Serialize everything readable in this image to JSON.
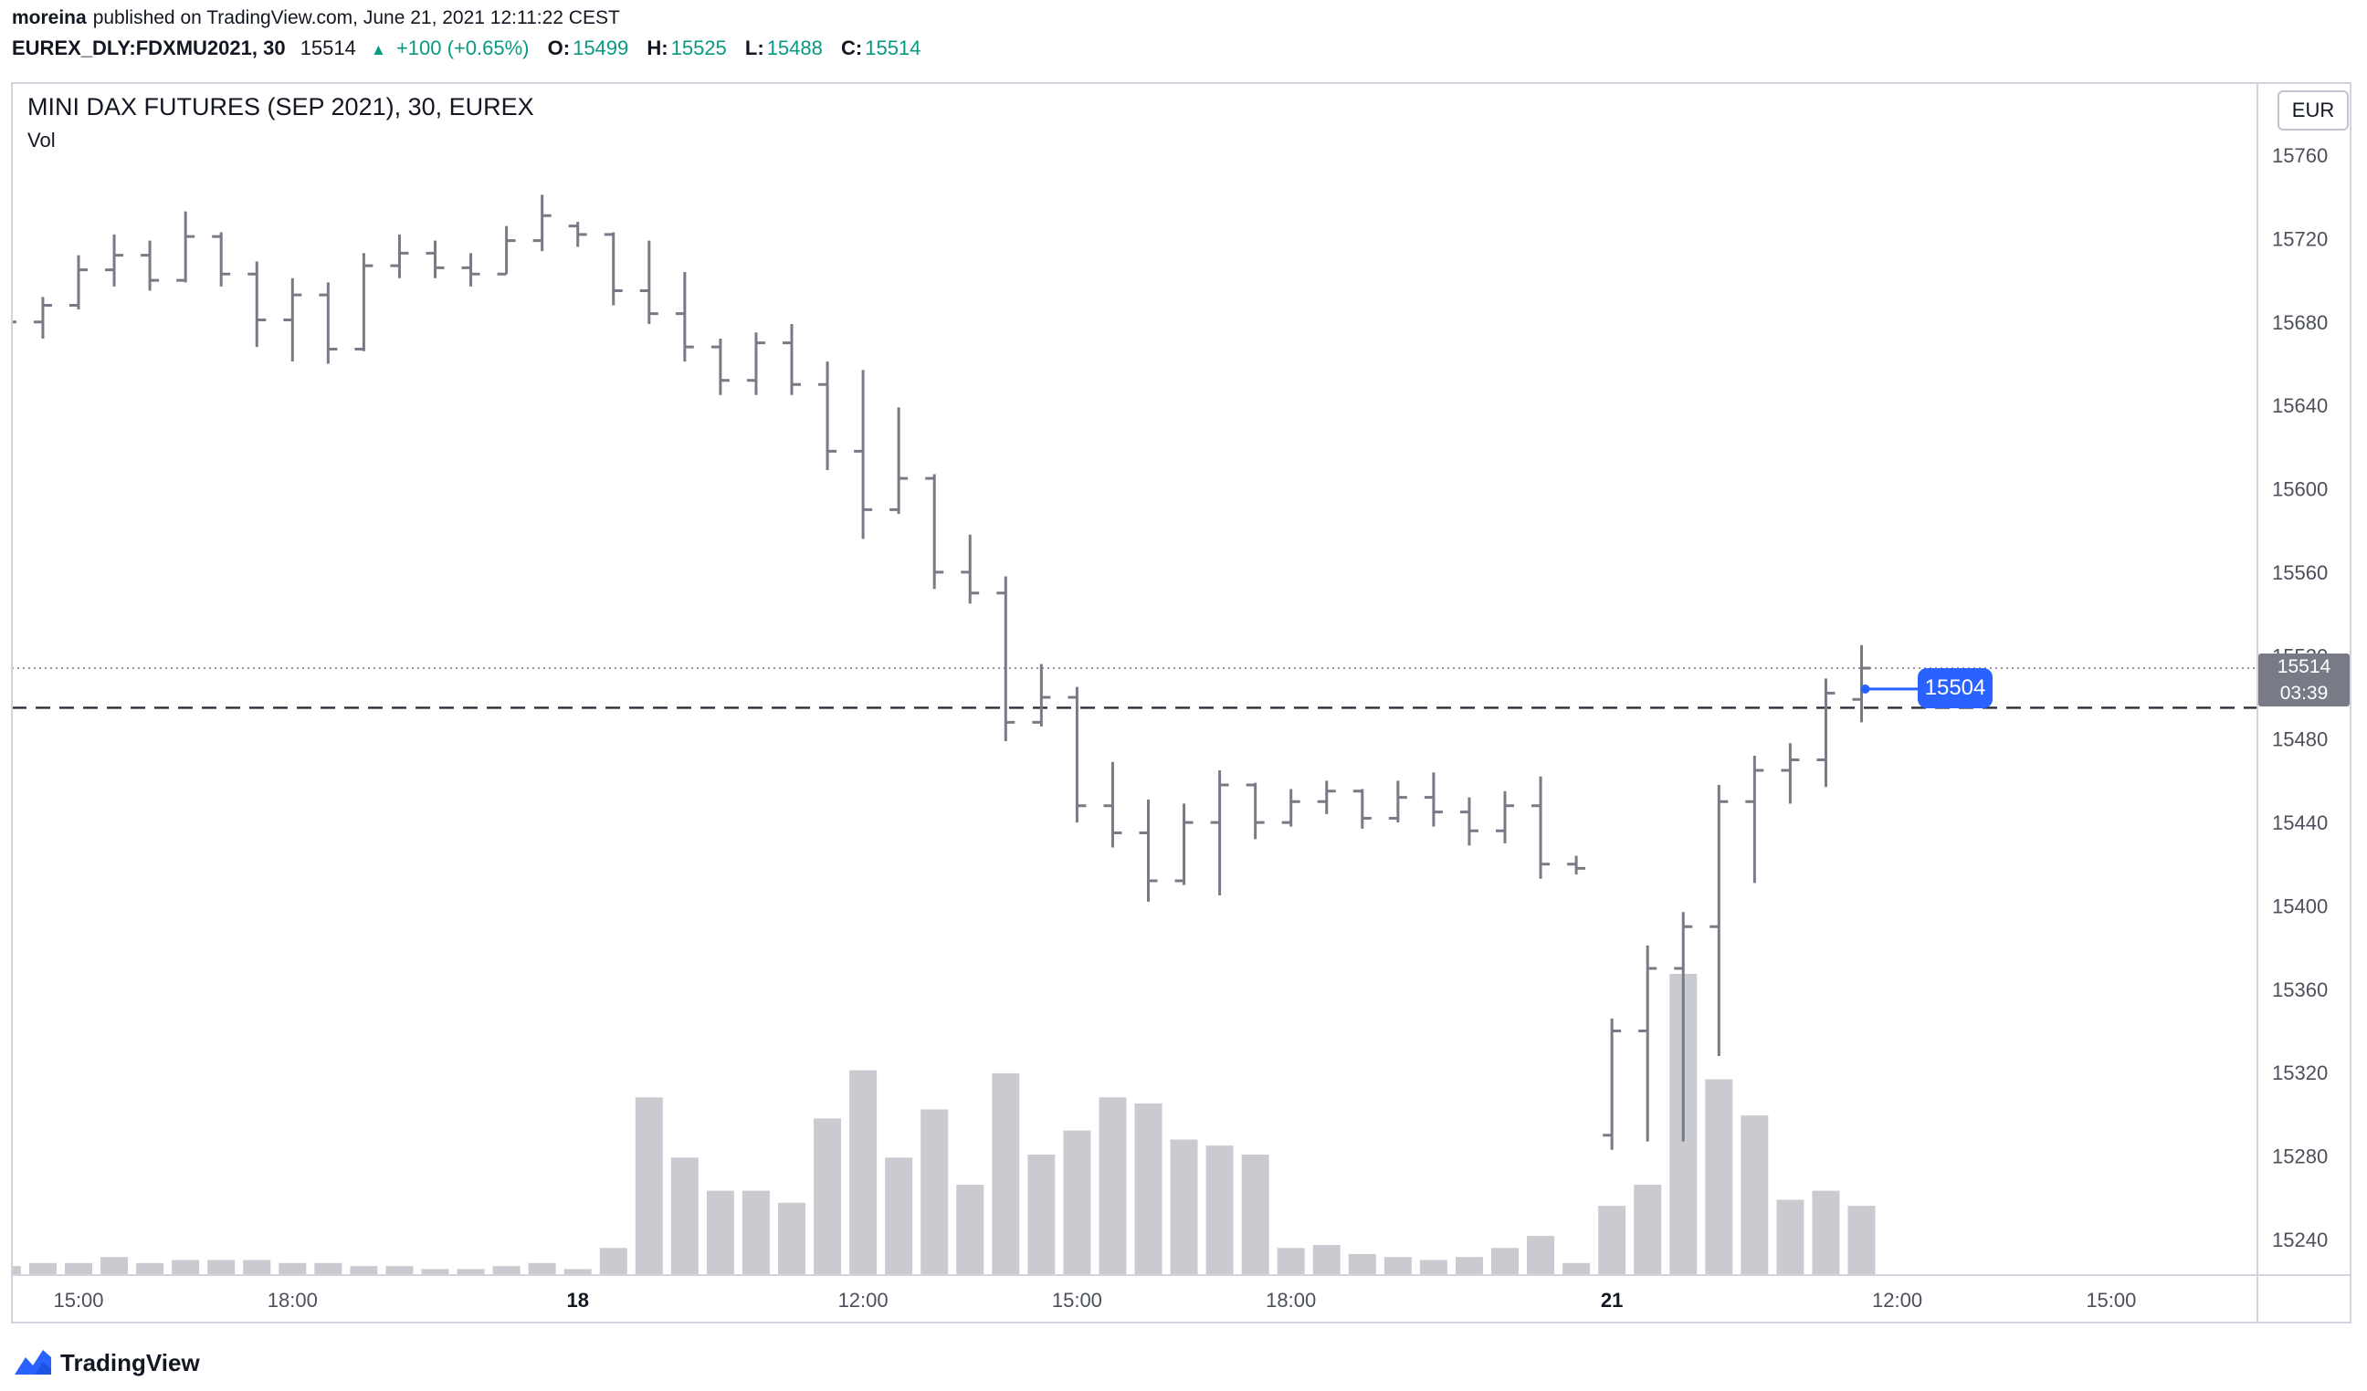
{
  "header": {
    "author": "moreina",
    "published": "published on TradingView.com, June 21, 2021 12:11:22 CEST",
    "symbol": "EUREX_DLY:FDXMU2021, 30",
    "last": "15514",
    "change_icon": "▲",
    "change": "+100 (+0.65%)",
    "ohlc": [
      {
        "label": "O:",
        "value": "15499"
      },
      {
        "label": "H:",
        "value": "15525"
      },
      {
        "label": "L:",
        "value": "15488"
      },
      {
        "label": "C:",
        "value": "15514"
      }
    ]
  },
  "chart": {
    "title": "MINI DAX FUTURES (SEP 2021), 30, EUREX",
    "pane_label": "Vol",
    "currency_label": "EUR",
    "price_tag": {
      "price": "15514",
      "countdown": "03:39"
    },
    "note_label": "15504",
    "colors": {
      "bar_gray": "#787b86",
      "volume_gray": "rgba(122,126,137,0.4)",
      "accent_blue": "#2962ff",
      "up_green": "#089981",
      "frame_gray": "#d1d4dc",
      "axis_text": "#4c505b",
      "tag_gray": "#787b86"
    }
  },
  "chart_data": {
    "type": "bar",
    "style": "ohlc-bars-with-volume",
    "title": "MINI DAX FUTURES (SEP 2021), 30, EUREX",
    "y_axis": {
      "currency": "EUR",
      "ticks": [
        15760,
        15720,
        15680,
        15640,
        15600,
        15560,
        15520,
        15480,
        15440,
        15400,
        15360,
        15320,
        15280,
        15240
      ]
    },
    "x_axis": {
      "labels": [
        {
          "bar": 2,
          "text": "15:00",
          "day": false
        },
        {
          "bar": 8,
          "text": "18:00",
          "day": false
        },
        {
          "bar": 16,
          "text": "18",
          "day": true
        },
        {
          "bar": 24,
          "text": "12:00",
          "day": false
        },
        {
          "bar": 30,
          "text": "15:00",
          "day": false
        },
        {
          "bar": 36,
          "text": "18:00",
          "day": false
        },
        {
          "bar": 45,
          "text": "21",
          "day": true
        },
        {
          "bar": 53,
          "text": "12:00",
          "day": false
        },
        {
          "bar": 59,
          "text": "15:00",
          "day": false
        }
      ]
    },
    "volume_units": "relative_percent_of_max_bar",
    "bars_ohlcv": [
      [
        15682,
        15688,
        15674,
        15680,
        3
      ],
      [
        15680,
        15692,
        15672,
        15688,
        4
      ],
      [
        15688,
        15712,
        15686,
        15705,
        4
      ],
      [
        15705,
        15722,
        15697,
        15712,
        6
      ],
      [
        15712,
        15719,
        15695,
        15700,
        4
      ],
      [
        15700,
        15733,
        15699,
        15721,
        5
      ],
      [
        15721,
        15723,
        15697,
        15703,
        5
      ],
      [
        15703,
        15709,
        15668,
        15681,
        5
      ],
      [
        15681,
        15701,
        15661,
        15693,
        4
      ],
      [
        15693,
        15699,
        15660,
        15667,
        4
      ],
      [
        15667,
        15713,
        15666,
        15707,
        3
      ],
      [
        15707,
        15722,
        15701,
        15713,
        3
      ],
      [
        15713,
        15719,
        15701,
        15706,
        2
      ],
      [
        15706,
        15713,
        15697,
        15703,
        2
      ],
      [
        15703,
        15726,
        15703,
        15719,
        3
      ],
      [
        15719,
        15741,
        15714,
        15731,
        4
      ],
      [
        15726,
        15728,
        15716,
        15722,
        2
      ],
      [
        15722,
        15723,
        15688,
        15695,
        9
      ],
      [
        15695,
        15719,
        15679,
        15684,
        59
      ],
      [
        15684,
        15704,
        15661,
        15668,
        39
      ],
      [
        15668,
        15672,
        15645,
        15652,
        28
      ],
      [
        15652,
        15675,
        15645,
        15670,
        28
      ],
      [
        15670,
        15679,
        15645,
        15650,
        24
      ],
      [
        15650,
        15661,
        15609,
        15618,
        52
      ],
      [
        15618,
        15657,
        15576,
        15590,
        68
      ],
      [
        15590,
        15639,
        15588,
        15605,
        39
      ],
      [
        15605,
        15607,
        15552,
        15560,
        55
      ],
      [
        15560,
        15578,
        15545,
        15550,
        30
      ],
      [
        15550,
        15558,
        15479,
        15488,
        67
      ],
      [
        15488,
        15516,
        15486,
        15500,
        40
      ],
      [
        15500,
        15505,
        15440,
        15448,
        48
      ],
      [
        15448,
        15469,
        15428,
        15435,
        59
      ],
      [
        15435,
        15451,
        15402,
        15412,
        57
      ],
      [
        15412,
        15449,
        15410,
        15440,
        45
      ],
      [
        15440,
        15465,
        15405,
        15458,
        43
      ],
      [
        15458,
        15459,
        15432,
        15440,
        40
      ],
      [
        15440,
        15456,
        15438,
        15450,
        9
      ],
      [
        15450,
        15460,
        15444,
        15455,
        10
      ],
      [
        15455,
        15456,
        15437,
        15442,
        7
      ],
      [
        15442,
        15460,
        15440,
        15452,
        6
      ],
      [
        15452,
        15464,
        15438,
        15445,
        5
      ],
      [
        15445,
        15452,
        15429,
        15436,
        6
      ],
      [
        15436,
        15455,
        15430,
        15448,
        9
      ],
      [
        15448,
        15462,
        15413,
        15420,
        13
      ],
      [
        15420,
        15424,
        15415,
        15418,
        4
      ],
      [
        15290,
        15346,
        15283,
        15340,
        23
      ],
      [
        15340,
        15381,
        15287,
        15370,
        30
      ],
      [
        15370,
        15397,
        15287,
        15390,
        100
      ],
      [
        15390,
        15458,
        15328,
        15450,
        65
      ],
      [
        15450,
        15472,
        15411,
        15465,
        53
      ],
      [
        15465,
        15478,
        15449,
        15470,
        25
      ],
      [
        15470,
        15509,
        15457,
        15502,
        28
      ],
      [
        15499,
        15525,
        15488,
        15514,
        23
      ]
    ],
    "overlays": {
      "current_price_dotted": 15514,
      "horizontal_dashed": 15495,
      "note": {
        "price": 15504,
        "label": "15504"
      }
    },
    "last_bar": {
      "open": 15499,
      "high": 15525,
      "low": 15488,
      "close": 15514,
      "countdown": "03:39"
    }
  },
  "footer": {
    "brand": "TradingView"
  }
}
